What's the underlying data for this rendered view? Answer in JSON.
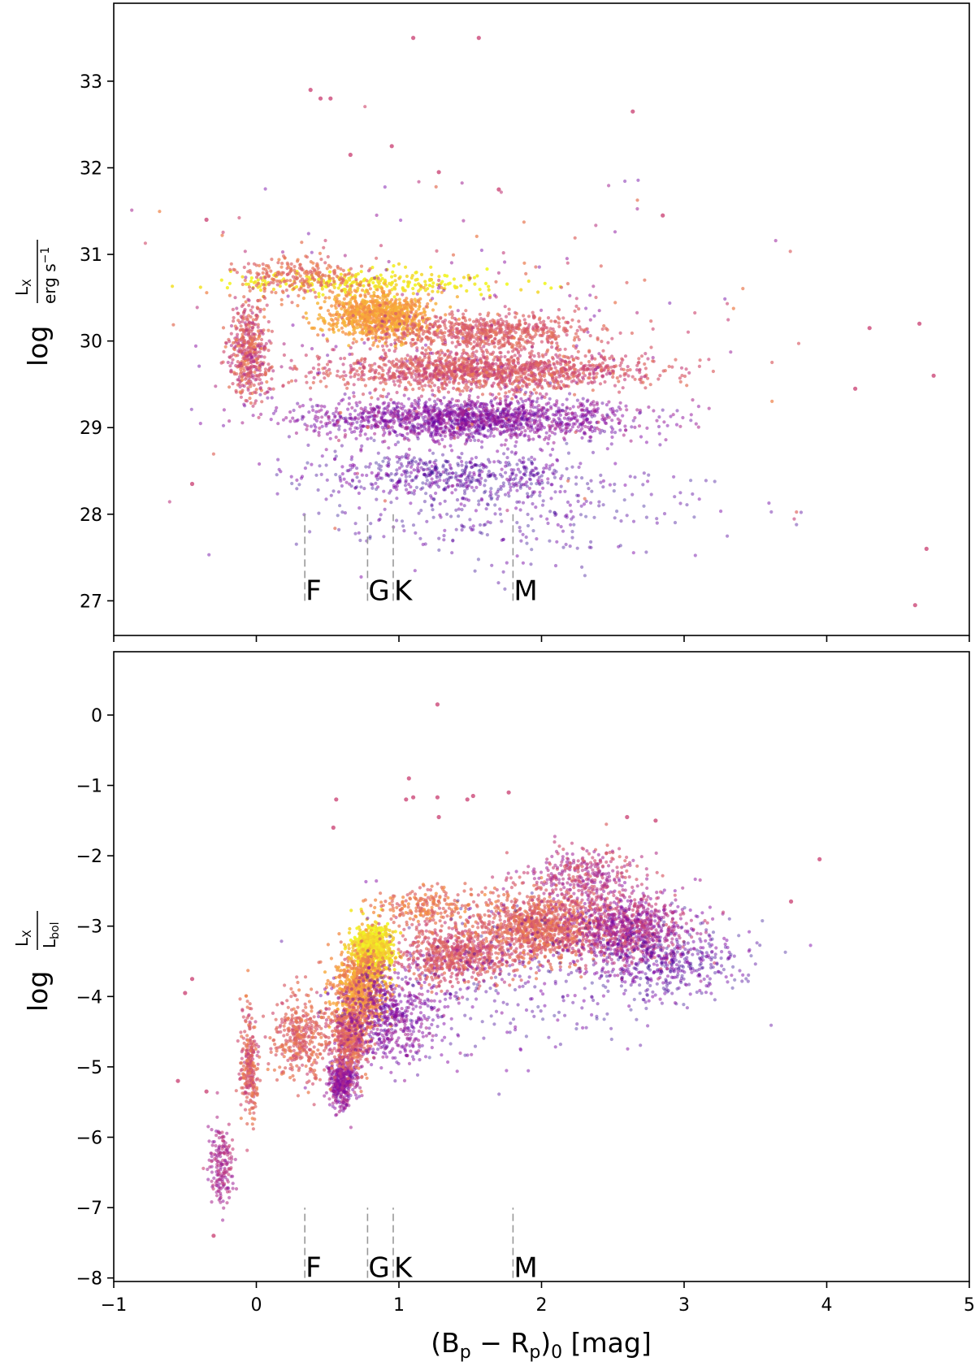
{
  "chart_data": [
    {
      "type": "scatter",
      "panel": "top",
      "xlabel": "(B_p − R_p)_0 [mag]",
      "ylabel": "log L_X / erg s^-1",
      "ylabel_prefix": "log",
      "ylabel_num": "L",
      "ylabel_num_sub": "X",
      "ylabel_den": "erg s",
      "ylabel_den_sup": "−1",
      "xlim": [
        -1,
        5
      ],
      "ylim": [
        26.6,
        33.9
      ],
      "xticks": [
        -1,
        0,
        1,
        2,
        3,
        4,
        5
      ],
      "yticks": [
        27,
        28,
        29,
        30,
        31,
        32,
        33
      ],
      "ytick_labels": [
        "27",
        "28",
        "29",
        "30",
        "31",
        "32",
        "33"
      ],
      "colormap": [
        "#0d0887",
        "#7e03a8",
        "#cc4778",
        "#f89540",
        "#f0f921"
      ],
      "spectral_classes": [
        {
          "label": "F",
          "x": 0.34
        },
        {
          "label": "G",
          "x": 0.78
        },
        {
          "label": "K",
          "x": 0.96
        },
        {
          "label": "M",
          "x": 1.8
        }
      ],
      "spectral_line_range": [
        27.0,
        28.0
      ],
      "spectral_label_y": 27.0,
      "density_regions": [
        {
          "x": [
            0.8,
            0.8
          ],
          "y": [
            30.68,
            0.12
          ],
          "n": 260,
          "c": [
            0.9,
            1.0
          ]
        },
        {
          "x": [
            0.85,
            0.3
          ],
          "y": [
            30.3,
            0.22
          ],
          "n": 900,
          "c": [
            0.7,
            0.85
          ]
        },
        {
          "x": [
            1.6,
            0.6
          ],
          "y": [
            30.1,
            0.18
          ],
          "n": 650,
          "c": [
            0.5,
            0.65
          ]
        },
        {
          "x": [
            1.6,
            0.9
          ],
          "y": [
            29.65,
            0.18
          ],
          "n": 1400,
          "c": [
            0.45,
            0.65
          ]
        },
        {
          "x": [
            1.5,
            0.95
          ],
          "y": [
            29.1,
            0.2
          ],
          "n": 1600,
          "c": [
            0.15,
            0.4
          ]
        },
        {
          "x": [
            1.4,
            0.8
          ],
          "y": [
            28.45,
            0.22
          ],
          "n": 550,
          "c": [
            0.05,
            0.3
          ]
        },
        {
          "x": [
            -0.05,
            0.12
          ],
          "y": [
            29.9,
            0.45
          ],
          "n": 450,
          "c": [
            0.4,
            0.7
          ]
        },
        {
          "x": [
            0.3,
            0.35
          ],
          "y": [
            30.75,
            0.2
          ],
          "n": 220,
          "c": [
            0.55,
            0.7
          ]
        },
        {
          "x": [
            1.8,
            1.1
          ],
          "y": [
            28.0,
            0.5
          ],
          "n": 260,
          "c": [
            0.05,
            0.25
          ]
        },
        {
          "x": [
            1.5,
            1.6
          ],
          "y": [
            30.0,
            1.5
          ],
          "n": 260,
          "c": [
            0.2,
            0.7
          ]
        }
      ],
      "outliers": [
        [
          0.38,
          32.9
        ],
        [
          0.45,
          32.8
        ],
        [
          0.52,
          32.8
        ],
        [
          1.1,
          33.5
        ],
        [
          1.56,
          33.5
        ],
        [
          2.64,
          32.65
        ],
        [
          0.95,
          32.25
        ],
        [
          1.28,
          31.95
        ],
        [
          1.7,
          31.75
        ],
        [
          2.85,
          31.45
        ],
        [
          0.66,
          32.15
        ],
        [
          -0.35,
          31.4
        ],
        [
          4.2,
          29.45
        ],
        [
          4.65,
          30.2
        ],
        [
          4.3,
          30.15
        ],
        [
          4.75,
          29.6
        ],
        [
          -0.45,
          28.35
        ],
        [
          4.62,
          26.95
        ],
        [
          4.7,
          27.6
        ]
      ]
    },
    {
      "type": "scatter",
      "panel": "bottom",
      "xlabel": "(B_p − R_p)_0 [mag]",
      "ylabel": "log L_X / L_bol",
      "ylabel_prefix": "log",
      "ylabel_num": "L",
      "ylabel_num_sub": "X",
      "ylabel_den": "L",
      "ylabel_den_sub": "bol",
      "xlim": [
        -1,
        5
      ],
      "ylim": [
        -8.05,
        0.9
      ],
      "xticks": [
        -1,
        0,
        1,
        2,
        3,
        4,
        5
      ],
      "xtick_labels": [
        "−1",
        "0",
        "1",
        "2",
        "3",
        "4",
        "5"
      ],
      "yticks": [
        -8,
        -7,
        -6,
        -5,
        -4,
        -3,
        -2,
        -1,
        0
      ],
      "ytick_labels": [
        "−8",
        "−7",
        "−6",
        "−5",
        "−4",
        "−3",
        "−2",
        "−1",
        "0"
      ],
      "colormap": [
        "#0d0887",
        "#7e03a8",
        "#cc4778",
        "#f89540",
        "#f0f921"
      ],
      "spectral_classes": [
        {
          "label": "F",
          "x": 0.34
        },
        {
          "label": "G",
          "x": 0.78
        },
        {
          "label": "K",
          "x": 0.96
        },
        {
          "label": "M",
          "x": 1.8
        }
      ],
      "spectral_line_range": [
        -8.0,
        -7.0
      ],
      "spectral_label_y": -8.0,
      "density_regions": [
        {
          "x": [
            0.82,
            0.12
          ],
          "y": [
            -3.35,
            0.3
          ],
          "n": 650,
          "c": [
            0.85,
            1.0
          ]
        },
        {
          "x": [
            0.72,
            0.15
          ],
          "y": [
            -3.9,
            0.45
          ],
          "n": 700,
          "c": [
            0.6,
            0.85
          ]
        },
        {
          "x": [
            0.6,
            0.08
          ],
          "y": [
            -5.2,
            0.3
          ],
          "n": 420,
          "c": [
            0.2,
            0.45
          ]
        },
        {
          "x": [
            0.65,
            0.12
          ],
          "y": [
            -4.6,
            0.4
          ],
          "n": 500,
          "c": [
            0.45,
            0.7
          ]
        },
        {
          "x": [
            0.95,
            0.3
          ],
          "y": [
            -4.3,
            0.55
          ],
          "n": 550,
          "c": [
            0.15,
            0.4
          ]
        },
        {
          "x": [
            1.4,
            0.35
          ],
          "y": [
            -3.4,
            0.35
          ],
          "n": 700,
          "c": [
            0.45,
            0.65
          ]
        },
        {
          "x": [
            2.0,
            0.35
          ],
          "y": [
            -3.0,
            0.4
          ],
          "n": 1000,
          "c": [
            0.5,
            0.7
          ]
        },
        {
          "x": [
            2.6,
            0.35
          ],
          "y": [
            -3.05,
            0.45
          ],
          "n": 900,
          "c": [
            0.25,
            0.55
          ]
        },
        {
          "x": [
            2.9,
            0.45
          ],
          "y": [
            -3.5,
            0.45
          ],
          "n": 400,
          "c": [
            0.05,
            0.3
          ]
        },
        {
          "x": [
            -0.05,
            0.05
          ],
          "y": [
            -5.0,
            0.6
          ],
          "n": 260,
          "c": [
            0.45,
            0.7
          ]
        },
        {
          "x": [
            -0.25,
            0.08
          ],
          "y": [
            -6.4,
            0.5
          ],
          "n": 180,
          "c": [
            0.3,
            0.5
          ]
        },
        {
          "x": [
            0.3,
            0.15
          ],
          "y": [
            -4.6,
            0.5
          ],
          "n": 350,
          "c": [
            0.5,
            0.7
          ]
        },
        {
          "x": [
            2.3,
            0.35
          ],
          "y": [
            -2.3,
            0.35
          ],
          "n": 350,
          "c": [
            0.3,
            0.6
          ]
        },
        {
          "x": [
            1.2,
            0.3
          ],
          "y": [
            -2.75,
            0.25
          ],
          "n": 220,
          "c": [
            0.55,
            0.75
          ]
        },
        {
          "x": [
            1.8,
            1.0
          ],
          "y": [
            -3.8,
            0.9
          ],
          "n": 300,
          "c": [
            0.05,
            0.3
          ]
        }
      ],
      "outliers": [
        [
          1.27,
          0.15
        ],
        [
          1.07,
          -0.9
        ],
        [
          1.05,
          -1.2
        ],
        [
          1.1,
          -1.17
        ],
        [
          1.27,
          -1.17
        ],
        [
          1.52,
          -1.15
        ],
        [
          1.48,
          -1.2
        ],
        [
          1.77,
          -1.1
        ],
        [
          1.28,
          -1.45
        ],
        [
          0.56,
          -1.2
        ],
        [
          0.54,
          -1.6
        ],
        [
          -0.45,
          -3.75
        ],
        [
          -0.5,
          -3.95
        ],
        [
          -0.55,
          -5.2
        ],
        [
          -0.35,
          -5.35
        ],
        [
          -0.3,
          -7.4
        ],
        [
          3.95,
          -2.05
        ],
        [
          3.75,
          -2.65
        ],
        [
          2.8,
          -1.5
        ],
        [
          2.6,
          -1.45
        ]
      ]
    }
  ]
}
